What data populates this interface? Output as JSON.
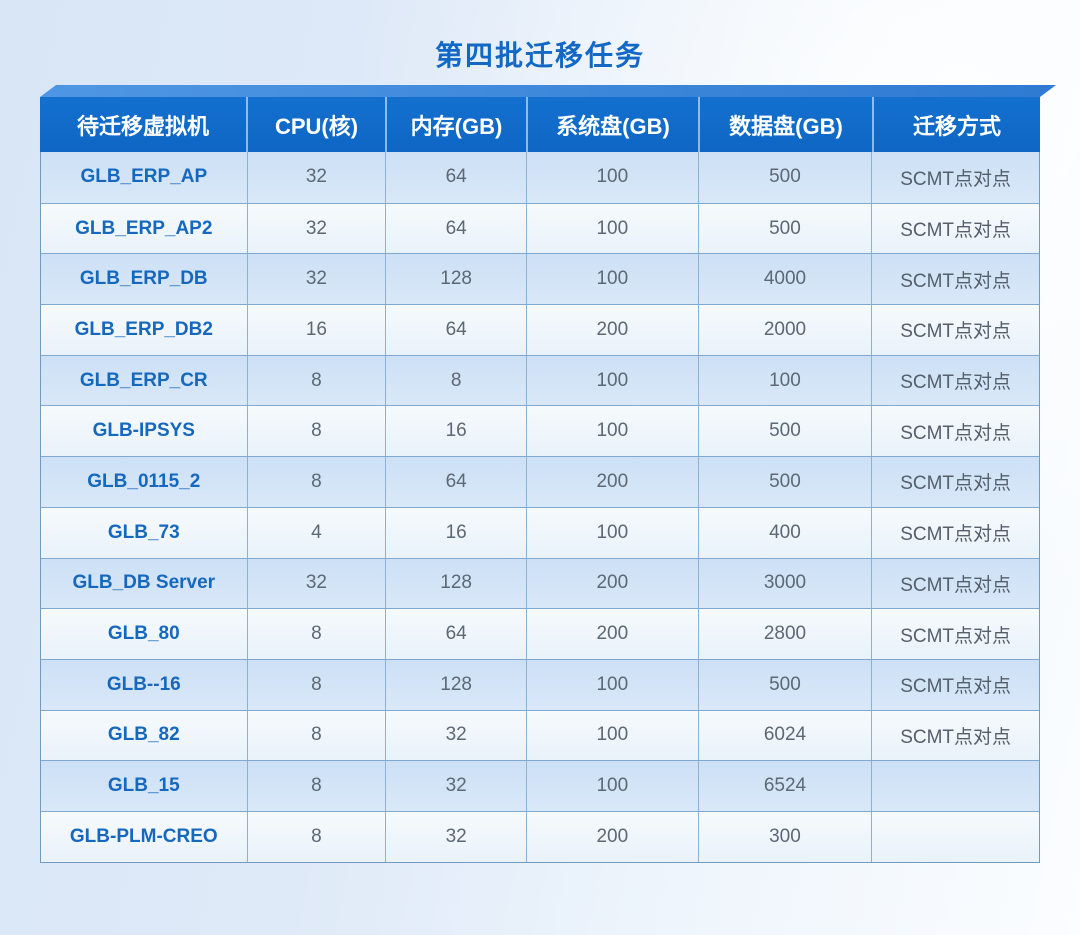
{
  "title": "第四批迁移任务",
  "colors": {
    "title_color": "#1268c4",
    "header_bg": "#0f66c4",
    "header_text": "#ffffff",
    "row_alt_bg": "#cde0f5",
    "row_bg": "#f1f7fc",
    "vm_name_color": "#1568be",
    "value_color": "#5d6875",
    "bevel_blue": "#3d87da"
  },
  "chart_data": {
    "type": "table",
    "title": "第四批迁移任务",
    "columns": [
      "待迁移虚拟机",
      "CPU(核)",
      "内存(GB)",
      "系统盘(GB)",
      "数据盘(GB)",
      "迁移方式"
    ],
    "rows": [
      [
        "GLB_ERP_AP",
        "32",
        "64",
        "100",
        "500",
        "SCMT点对点"
      ],
      [
        "GLB_ERP_AP2",
        "32",
        "64",
        "100",
        "500",
        "SCMT点对点"
      ],
      [
        "GLB_ERP_DB",
        "32",
        "128",
        "100",
        "4000",
        "SCMT点对点"
      ],
      [
        "GLB_ERP_DB2",
        "16",
        "64",
        "200",
        "2000",
        "SCMT点对点"
      ],
      [
        "GLB_ERP_CR",
        "8",
        "8",
        "100",
        "100",
        "SCMT点对点"
      ],
      [
        "GLB-IPSYS",
        "8",
        "16",
        "100",
        "500",
        "SCMT点对点"
      ],
      [
        "GLB_0115_2",
        "8",
        "64",
        "200",
        "500",
        "SCMT点对点"
      ],
      [
        "GLB_73",
        "4",
        "16",
        "100",
        "400",
        "SCMT点对点"
      ],
      [
        "GLB_DB Server",
        "32",
        "128",
        "200",
        "3000",
        "SCMT点对点"
      ],
      [
        "GLB_80",
        "8",
        "64",
        "200",
        "2800",
        "SCMT点对点"
      ],
      [
        "GLB--16",
        "8",
        "128",
        "100",
        "500",
        "SCMT点对点"
      ],
      [
        "GLB_82",
        "8",
        "32",
        "100",
        "6024",
        "SCMT点对点"
      ],
      [
        "GLB_15",
        "8",
        "32",
        "100",
        "6524",
        ""
      ],
      [
        "GLB-PLM-CREO",
        "8",
        "32",
        "200",
        "300",
        ""
      ]
    ]
  }
}
